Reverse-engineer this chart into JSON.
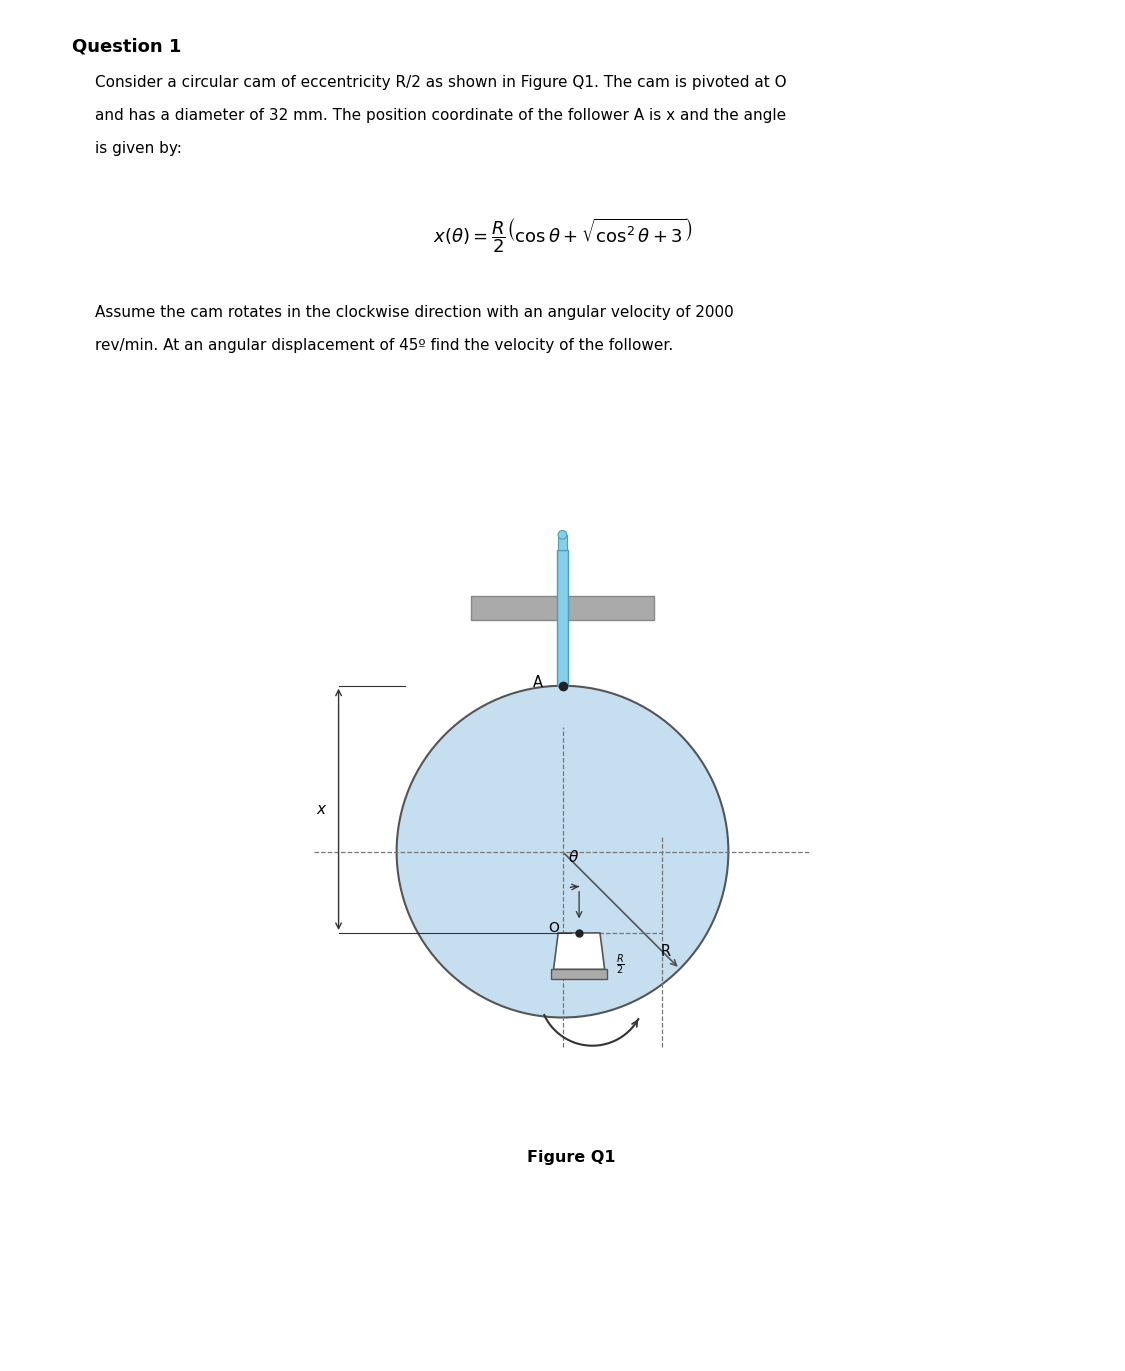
{
  "title": "Question 1",
  "paragraph1_line1": "Consider a circular cam of eccentricity R/2 as shown in Figure Q1. The cam is pivoted at O",
  "paragraph1_line2": "and has a diameter of 32 mm. The position coordinate of the follower A is x and the angle",
  "paragraph1_line3": "is given by:",
  "formula": "$x(\\theta) = \\dfrac{R}{2}\\left(\\cos\\theta + \\sqrt{\\cos^2\\theta + 3}\\right)$",
  "paragraph2_line1": "Assume the cam rotates in the clockwise direction with an angular velocity of 2000",
  "paragraph2_line2": "rev/min. At an angular displacement of 45º find the velocity of the follower.",
  "figure_caption": "Figure Q1",
  "bg_color": "#ffffff",
  "cam_fill_color": "#c5dff0",
  "cam_edge_color": "#555555",
  "rod_color": "#87ceeb",
  "rod_edge_color": "#4a9fba",
  "guide_color": "#aaaaaa",
  "guide_edge": "#888888",
  "dash_color": "#777777",
  "text_color": "#000000",
  "arrow_color": "#333333",
  "pivot_fill": "#f0f0f0",
  "pivot_edge": "#555555",
  "base_fill": "#aaaaaa",
  "dot_color": "#222222"
}
